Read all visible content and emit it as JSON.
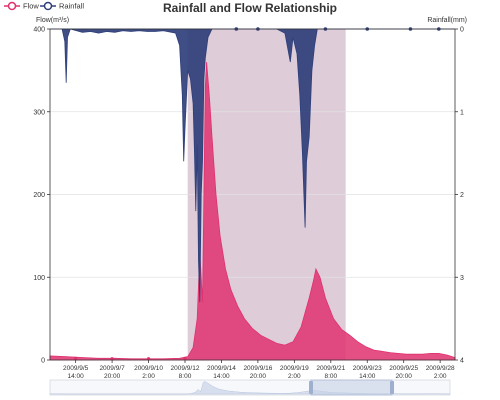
{
  "chart_data": {
    "type": "area",
    "title": "Rainfall and Flow Relationship",
    "legend": {
      "placement": "top-left",
      "items": [
        {
          "name": "Flow",
          "color": "#e0316e"
        },
        {
          "name": "Rainfall",
          "color": "#2f3f7a"
        }
      ]
    },
    "y_left": {
      "label": "Flow(m³/s)",
      "range": [
        0,
        400
      ],
      "ticks": [
        "0",
        "100",
        "200",
        "300",
        "400"
      ]
    },
    "y_right": {
      "label": "Rainfall(mm)",
      "range": [
        0,
        4
      ],
      "inverse": true,
      "ticks": [
        "0",
        "1",
        "2",
        "3",
        "4"
      ]
    },
    "x": {
      "tick_labels": [
        {
          "date": "2009/9/5",
          "time": "14:00"
        },
        {
          "date": "2009/9/7",
          "time": "20:00"
        },
        {
          "date": "2009/9/10",
          "time": "2:00"
        },
        {
          "date": "2009/9/12",
          "time": "8:00"
        },
        {
          "date": "2009/9/14",
          "time": "14:00"
        },
        {
          "date": "2009/9/16",
          "time": "20:00"
        },
        {
          "date": "2009/9/19",
          "time": "2:00"
        },
        {
          "date": "2009/9/21",
          "time": "8:00"
        },
        {
          "date": "2009/9/23",
          "time": "14:00"
        },
        {
          "date": "2009/9/25",
          "time": "20:00"
        },
        {
          "date": "2009/9/28",
          "time": "2:00"
        }
      ]
    },
    "mark_area": {
      "start": "2009/9/12 12:00",
      "end": "2009/9/22 6:00",
      "color": "#d8c3d2"
    },
    "series": [
      {
        "name": "Flow",
        "axis": "left",
        "color": "#e0316e",
        "points": [
          [
            "2009/9/4 0:00",
            5
          ],
          [
            "2009/9/5 0:00",
            4
          ],
          [
            "2009/9/6 0:00",
            3
          ],
          [
            "2009/9/7 0:00",
            2
          ],
          [
            "2009/9/8 0:00",
            2
          ],
          [
            "2009/9/9 0:00",
            1.5
          ],
          [
            "2009/9/10 0:00",
            1.5
          ],
          [
            "2009/9/11 0:00",
            1.5
          ],
          [
            "2009/9/12 0:00",
            2
          ],
          [
            "2009/9/12 12:00",
            4
          ],
          [
            "2009/9/12 20:00",
            15
          ],
          [
            "2009/9/13 2:00",
            50
          ],
          [
            "2009/9/13 6:00",
            130
          ],
          [
            "2009/9/13 8:00",
            100
          ],
          [
            "2009/9/13 10:00",
            70
          ],
          [
            "2009/9/13 12:00",
            200
          ],
          [
            "2009/9/13 14:00",
            330
          ],
          [
            "2009/9/13 16:00",
            360
          ],
          [
            "2009/9/13 20:00",
            320
          ],
          [
            "2009/9/14 0:00",
            270
          ],
          [
            "2009/9/14 6:00",
            200
          ],
          [
            "2009/9/14 12:00",
            150
          ],
          [
            "2009/9/14 20:00",
            110
          ],
          [
            "2009/9/15 4:00",
            85
          ],
          [
            "2009/9/15 14:00",
            65
          ],
          [
            "2009/9/16 0:00",
            50
          ],
          [
            "2009/9/16 12:00",
            38
          ],
          [
            "2009/9/17 0:00",
            30
          ],
          [
            "2009/9/17 12:00",
            25
          ],
          [
            "2009/9/18 0:00",
            20
          ],
          [
            "2009/9/18 12:00",
            18
          ],
          [
            "2009/9/19 0:00",
            22
          ],
          [
            "2009/9/19 12:00",
            40
          ],
          [
            "2009/9/20 0:00",
            75
          ],
          [
            "2009/9/20 6:00",
            95
          ],
          [
            "2009/9/20 10:00",
            110
          ],
          [
            "2009/9/20 16:00",
            100
          ],
          [
            "2009/9/21 0:00",
            75
          ],
          [
            "2009/9/21 12:00",
            50
          ],
          [
            "2009/9/22 0:00",
            37
          ],
          [
            "2009/9/22 12:00",
            30
          ],
          [
            "2009/9/23 0:00",
            22
          ],
          [
            "2009/9/23 12:00",
            16
          ],
          [
            "2009/9/24 0:00",
            12
          ],
          [
            "2009/9/25 0:00",
            9
          ],
          [
            "2009/9/26 0:00",
            7
          ],
          [
            "2009/9/27 0:00",
            7
          ],
          [
            "2009/9/27 12:00",
            8
          ],
          [
            "2009/9/28 0:00",
            8
          ],
          [
            "2009/9/28 12:00",
            6
          ],
          [
            "2009/9/29 0:00",
            3
          ]
        ]
      },
      {
        "name": "Rainfall",
        "axis": "right",
        "color": "#2f3f7a",
        "points": [
          [
            "2009/9/4 0:00",
            0
          ],
          [
            "2009/9/4 18:00",
            0
          ],
          [
            "2009/9/4 22:00",
            0.15
          ],
          [
            "2009/9/5 0:00",
            0.65
          ],
          [
            "2009/9/5 2:00",
            0.1
          ],
          [
            "2009/9/5 6:00",
            0
          ],
          [
            "2009/9/6 0:00",
            0.04
          ],
          [
            "2009/9/6 12:00",
            0.03
          ],
          [
            "2009/9/7 0:00",
            0.05
          ],
          [
            "2009/9/7 12:00",
            0.03
          ],
          [
            "2009/9/8 0:00",
            0.04
          ],
          [
            "2009/9/8 12:00",
            0.02
          ],
          [
            "2009/9/9 0:00",
            0.03
          ],
          [
            "2009/9/9 12:00",
            0.02
          ],
          [
            "2009/9/10 0:00",
            0.03
          ],
          [
            "2009/9/10 12:00",
            0.03
          ],
          [
            "2009/9/11 0:00",
            0.02
          ],
          [
            "2009/9/11 18:00",
            0.05
          ],
          [
            "2009/9/12 0:00",
            0.2
          ],
          [
            "2009/9/12 4:00",
            0.8
          ],
          [
            "2009/9/12 6:00",
            1.6
          ],
          [
            "2009/9/12 8:00",
            1.2
          ],
          [
            "2009/9/12 12:00",
            0.5
          ],
          [
            "2009/9/12 16:00",
            0.6
          ],
          [
            "2009/9/12 20:00",
            0.9
          ],
          [
            "2009/9/12 22:00",
            1.5
          ],
          [
            "2009/9/13 0:00",
            2.2
          ],
          [
            "2009/9/13 2:00",
            1.4
          ],
          [
            "2009/9/13 4:00",
            2.8
          ],
          [
            "2009/9/13 6:00",
            3.3
          ],
          [
            "2009/9/13 8:00",
            2.0
          ],
          [
            "2009/9/13 10:00",
            1.6
          ],
          [
            "2009/9/13 12:00",
            0.6
          ],
          [
            "2009/9/13 14:00",
            0.35
          ],
          [
            "2009/9/13 18:00",
            0.1
          ],
          [
            "2009/9/14 0:00",
            0
          ],
          [
            "2009/9/15 0:00",
            0
          ],
          [
            "2009/9/16 0:00",
            0
          ],
          [
            "2009/9/17 0:00",
            0
          ],
          [
            "2009/9/18 0:00",
            0
          ],
          [
            "2009/9/18 12:00",
            0.05
          ],
          [
            "2009/9/18 20:00",
            0.4
          ],
          [
            "2009/9/19 0:00",
            0.1
          ],
          [
            "2009/9/19 6:00",
            0.3
          ],
          [
            "2009/9/19 10:00",
            0.8
          ],
          [
            "2009/9/19 14:00",
            1.5
          ],
          [
            "2009/9/19 18:00",
            2.4
          ],
          [
            "2009/9/19 20:00",
            1.6
          ],
          [
            "2009/9/20 0:00",
            1.3
          ],
          [
            "2009/9/20 4:00",
            0.5
          ],
          [
            "2009/9/20 8:00",
            0.2
          ],
          [
            "2009/9/20 12:00",
            0
          ],
          [
            "2009/9/29 0:00",
            0
          ]
        ]
      }
    ]
  }
}
